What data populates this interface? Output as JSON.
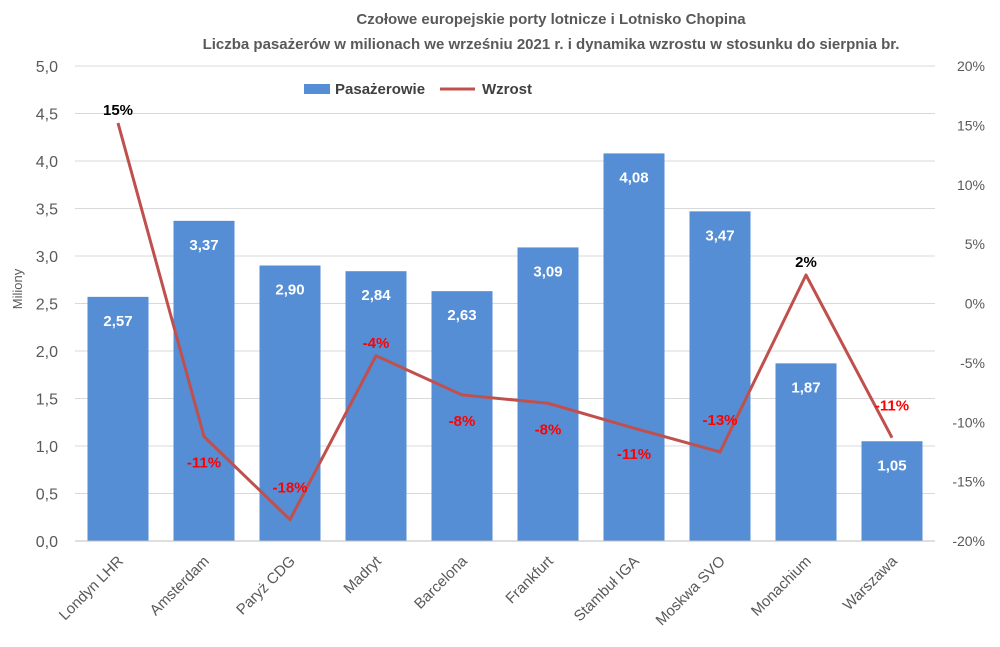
{
  "chart_data": {
    "type": "bar",
    "title": "Czołowe europejskie porty lotnicze i Lotnisko Chopina",
    "subtitle": "Liczba pasażerów w milionach we wrześniu 2021 r. i dynamika wzrostu w stosunku do sierpnia br.",
    "ylabel": "Miliony",
    "categories": [
      "Londyn LHR",
      "Amsterdam",
      "Paryż CDG",
      "Madryt",
      "Barcelona",
      "Frankfurt",
      "Stambuł IGA",
      "Moskwa SVO",
      "Monachium",
      "Warszawa"
    ],
    "series": [
      {
        "name": "Pasażerowie",
        "type": "bar",
        "axis": "left",
        "color": "#558ED5",
        "values": [
          2.57,
          3.37,
          2.9,
          2.84,
          2.63,
          3.09,
          4.08,
          3.47,
          1.87,
          1.05
        ],
        "labels": [
          "2,57",
          "3,37",
          "2,90",
          "2,84",
          "2,63",
          "3,09",
          "4,08",
          "3,47",
          "1,87",
          "1,05"
        ]
      },
      {
        "name": "Wzrost",
        "type": "line",
        "axis": "right",
        "color": "#C0504D",
        "values": [
          15.2,
          -11.2,
          -18.2,
          -4.4,
          -7.7,
          -8.4,
          -10.5,
          -12.5,
          2.4,
          -11.3
        ],
        "labels": [
          "15%",
          "-11%",
          "-18%",
          "-4%",
          "-8%",
          "-8%",
          "-11%",
          "-13%",
          "2%",
          "-11%"
        ],
        "label_colors": [
          "#000000",
          "#FF0000",
          "#FF0000",
          "#FF0000",
          "#FF0000",
          "#FF0000",
          "#FF0000",
          "#FF0000",
          "#000000",
          "#FF0000"
        ]
      }
    ],
    "y_left": {
      "range": [
        0,
        5
      ],
      "ticks": [
        0,
        0.5,
        1,
        1.5,
        2,
        2.5,
        3,
        3.5,
        4,
        4.5,
        5
      ],
      "tick_labels": [
        "0,0",
        "0,5",
        "1,0",
        "1,5",
        "2,0",
        "2,5",
        "3,0",
        "3,5",
        "4,0",
        "4,5",
        "5,0"
      ]
    },
    "y_right": {
      "range": [
        -20,
        20
      ],
      "ticks": [
        -20,
        -15,
        -10,
        -5,
        0,
        5,
        10,
        15,
        20
      ],
      "tick_labels": [
        "-20%",
        "-15%",
        "-10%",
        "-5%",
        "0%",
        "5%",
        "10%",
        "15%",
        "20%"
      ]
    },
    "grid": true,
    "legend": "top-center"
  }
}
